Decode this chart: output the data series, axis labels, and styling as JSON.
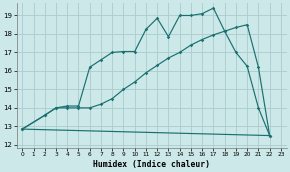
{
  "xlabel": "Humidex (Indice chaleur)",
  "bg_color": "#cce8e8",
  "grid_color": "#aacccc",
  "line_color": "#1a7070",
  "xlim": [
    -0.5,
    23.5
  ],
  "ylim": [
    11.85,
    19.65
  ],
  "yticks": [
    12,
    13,
    14,
    15,
    16,
    17,
    18,
    19
  ],
  "xticks": [
    0,
    1,
    2,
    3,
    4,
    5,
    6,
    7,
    8,
    9,
    10,
    11,
    12,
    13,
    14,
    15,
    16,
    17,
    18,
    19,
    20,
    21,
    22,
    23
  ],
  "line1_x": [
    0,
    2,
    3,
    4,
    5,
    6,
    7,
    8,
    9,
    10,
    11,
    12,
    13,
    14,
    15,
    16,
    17,
    18,
    19,
    20,
    21,
    22
  ],
  "line1_y": [
    12.85,
    13.6,
    14.0,
    14.1,
    14.1,
    16.2,
    16.6,
    17.0,
    17.05,
    17.05,
    18.25,
    18.85,
    17.85,
    19.0,
    19.0,
    19.1,
    19.4,
    18.15,
    17.0,
    16.25,
    14.0,
    12.5
  ],
  "line2_x": [
    0,
    2,
    3,
    4,
    5,
    6,
    7,
    8,
    9,
    10,
    11,
    12,
    13,
    14,
    15,
    16,
    17,
    18,
    19,
    20,
    21,
    22
  ],
  "line2_y": [
    12.85,
    13.6,
    14.0,
    14.0,
    14.0,
    14.0,
    14.2,
    14.5,
    15.0,
    15.4,
    15.9,
    16.3,
    16.7,
    17.0,
    17.4,
    17.7,
    17.95,
    18.15,
    18.35,
    18.5,
    16.2,
    12.5
  ],
  "line3_x": [
    0,
    22
  ],
  "line3_y": [
    12.85,
    12.5
  ]
}
